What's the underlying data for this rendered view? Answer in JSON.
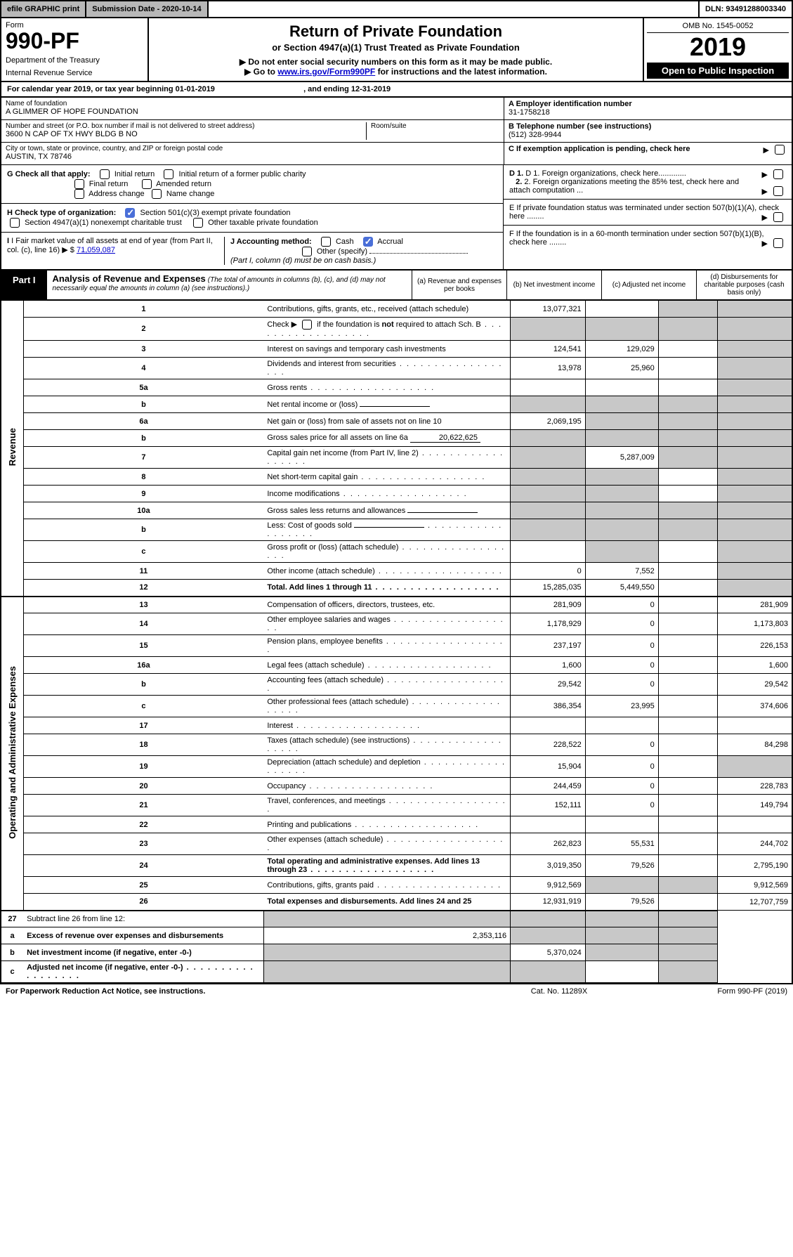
{
  "topbar": {
    "efile": "efile GRAPHIC print",
    "submission": "Submission Date - 2020-10-14",
    "dln": "DLN: 93491288003340"
  },
  "header": {
    "form_word": "Form",
    "form_no": "990-PF",
    "dept": "Department of the Treasury",
    "irs": "Internal Revenue Service",
    "title": "Return of Private Foundation",
    "subtitle": "or Section 4947(a)(1) Trust Treated as Private Foundation",
    "note1": "▶ Do not enter social security numbers on this form as it may be made public.",
    "note2_pre": "▶ Go to ",
    "note2_link": "www.irs.gov/Form990PF",
    "note2_post": " for instructions and the latest information.",
    "omb": "OMB No. 1545-0052",
    "year": "2019",
    "open": "Open to Public Inspection"
  },
  "calyear": {
    "text_pre": "For calendar year 2019, or tax year beginning ",
    "begin": "01-01-2019",
    "mid": ", and ending ",
    "end": "12-31-2019"
  },
  "entity": {
    "name_lbl": "Name of foundation",
    "name": "A GLIMMER OF HOPE FOUNDATION",
    "addr_lbl": "Number and street (or P.O. box number if mail is not delivered to street address)",
    "addr": "3600 N CAP OF TX HWY BLDG B NO",
    "room_lbl": "Room/suite",
    "room": "",
    "city_lbl": "City or town, state or province, country, and ZIP or foreign postal code",
    "city": "AUSTIN, TX  78746",
    "a_lbl": "A Employer identification number",
    "a_val": "31-1758218",
    "b_lbl": "B Telephone number (see instructions)",
    "b_val": "(512) 328-9944",
    "c_lbl": "C If exemption application is pending, check here"
  },
  "checks": {
    "g_lbl": "G Check all that apply:",
    "g1": "Initial return",
    "g2": "Initial return of a former public charity",
    "g3": "Final return",
    "g4": "Amended return",
    "g5": "Address change",
    "g6": "Name change",
    "h_lbl": "H Check type of organization:",
    "h1": "Section 501(c)(3) exempt private foundation",
    "h2": "Section 4947(a)(1) nonexempt charitable trust",
    "h3": "Other taxable private foundation",
    "i_lbl": "I Fair market value of all assets at end of year (from Part II, col. (c), line 16) ▶ $",
    "i_val": "71,059,087",
    "j_lbl": "J Accounting method:",
    "j1": "Cash",
    "j2": "Accrual",
    "j3": "Other (specify)",
    "j_note": "(Part I, column (d) must be on cash basis.)",
    "d1": "D 1. Foreign organizations, check here.............",
    "d2": "2. Foreign organizations meeting the 85% test, check here and attach computation ...",
    "e": "E  If private foundation status was terminated under section 507(b)(1)(A), check here ........",
    "f": "F  If the foundation is in a 60-month termination under section 507(b)(1)(B), check here ........"
  },
  "part1": {
    "label": "Part I",
    "title": "Analysis of Revenue and Expenses",
    "subtitle": "(The total of amounts in columns (b), (c), and (d) may not necessarily equal the amounts in column (a) (see instructions).)",
    "cols": {
      "a": "(a)   Revenue and expenses per books",
      "b": "(b)  Net investment income",
      "c": "(c)  Adjusted net income",
      "d": "(d)  Disbursements for charitable purposes (cash basis only)"
    }
  },
  "side": {
    "revenue": "Revenue",
    "expenses": "Operating and Administrative Expenses"
  },
  "rows": [
    {
      "n": "1",
      "d": "Contributions, gifts, grants, etc., received (attach schedule)",
      "a": "13,077,321",
      "b": "",
      "c": "shade",
      "dcol": "shade"
    },
    {
      "n": "2",
      "d": "Check ▶ ☐ if the foundation is not required to attach Sch. B",
      "dots": true,
      "a": "shade",
      "b": "shade",
      "c": "shade",
      "dcol": "shade"
    },
    {
      "n": "3",
      "d": "Interest on savings and temporary cash investments",
      "a": "124,541",
      "b": "129,029",
      "c": "",
      "dcol": "shade"
    },
    {
      "n": "4",
      "d": "Dividends and interest from securities",
      "dots": true,
      "a": "13,978",
      "b": "25,960",
      "c": "",
      "dcol": "shade"
    },
    {
      "n": "5a",
      "d": "Gross rents",
      "dots": true,
      "a": "",
      "b": "",
      "c": "",
      "dcol": "shade"
    },
    {
      "n": "b",
      "d": "Net rental income or (loss)",
      "inline": "",
      "a": "shade",
      "b": "shade",
      "c": "shade",
      "dcol": "shade"
    },
    {
      "n": "6a",
      "d": "Net gain or (loss) from sale of assets not on line 10",
      "a": "2,069,195",
      "b": "shade",
      "c": "shade",
      "dcol": "shade"
    },
    {
      "n": "b",
      "d": "Gross sales price for all assets on line 6a",
      "inline": "20,622,625",
      "a": "shade",
      "b": "shade",
      "c": "shade",
      "dcol": "shade"
    },
    {
      "n": "7",
      "d": "Capital gain net income (from Part IV, line 2)",
      "dots": true,
      "a": "shade",
      "b": "5,287,009",
      "c": "shade",
      "dcol": "shade"
    },
    {
      "n": "8",
      "d": "Net short-term capital gain",
      "dots": true,
      "a": "shade",
      "b": "shade",
      "c": "",
      "dcol": "shade"
    },
    {
      "n": "9",
      "d": "Income modifications",
      "dots": true,
      "a": "shade",
      "b": "shade",
      "c": "",
      "dcol": "shade"
    },
    {
      "n": "10a",
      "d": "Gross sales less returns and allowances",
      "inline": "",
      "a": "shade",
      "b": "shade",
      "c": "shade",
      "dcol": "shade"
    },
    {
      "n": "b",
      "d": "Less: Cost of goods sold",
      "dots": true,
      "inline": "",
      "a": "shade",
      "b": "shade",
      "c": "shade",
      "dcol": "shade"
    },
    {
      "n": "c",
      "d": "Gross profit or (loss) (attach schedule)",
      "dots": true,
      "a": "",
      "b": "shade",
      "c": "",
      "dcol": "shade"
    },
    {
      "n": "11",
      "d": "Other income (attach schedule)",
      "dots": true,
      "a": "0",
      "b": "7,552",
      "c": "",
      "dcol": "shade"
    },
    {
      "n": "12",
      "d": "Total. Add lines 1 through 11",
      "dots": true,
      "bold": true,
      "a": "15,285,035",
      "b": "5,449,550",
      "c": "",
      "dcol": "shade"
    }
  ],
  "exprows": [
    {
      "n": "13",
      "d": "Compensation of officers, directors, trustees, etc.",
      "a": "281,909",
      "b": "0",
      "c": "",
      "dcol": "281,909"
    },
    {
      "n": "14",
      "d": "Other employee salaries and wages",
      "dots": true,
      "a": "1,178,929",
      "b": "0",
      "c": "",
      "dcol": "1,173,803"
    },
    {
      "n": "15",
      "d": "Pension plans, employee benefits",
      "dots": true,
      "a": "237,197",
      "b": "0",
      "c": "",
      "dcol": "226,153"
    },
    {
      "n": "16a",
      "d": "Legal fees (attach schedule)",
      "dots": true,
      "a": "1,600",
      "b": "0",
      "c": "",
      "dcol": "1,600"
    },
    {
      "n": "b",
      "d": "Accounting fees (attach schedule)",
      "dots": true,
      "a": "29,542",
      "b": "0",
      "c": "",
      "dcol": "29,542"
    },
    {
      "n": "c",
      "d": "Other professional fees (attach schedule)",
      "dots": true,
      "a": "386,354",
      "b": "23,995",
      "c": "",
      "dcol": "374,606"
    },
    {
      "n": "17",
      "d": "Interest",
      "dots": true,
      "a": "",
      "b": "",
      "c": "",
      "dcol": ""
    },
    {
      "n": "18",
      "d": "Taxes (attach schedule) (see instructions)",
      "dots": true,
      "a": "228,522",
      "b": "0",
      "c": "",
      "dcol": "84,298"
    },
    {
      "n": "19",
      "d": "Depreciation (attach schedule) and depletion",
      "dots": true,
      "a": "15,904",
      "b": "0",
      "c": "",
      "dcol": "shade"
    },
    {
      "n": "20",
      "d": "Occupancy",
      "dots": true,
      "a": "244,459",
      "b": "0",
      "c": "",
      "dcol": "228,783"
    },
    {
      "n": "21",
      "d": "Travel, conferences, and meetings",
      "dots": true,
      "a": "152,111",
      "b": "0",
      "c": "",
      "dcol": "149,794"
    },
    {
      "n": "22",
      "d": "Printing and publications",
      "dots": true,
      "a": "",
      "b": "",
      "c": "",
      "dcol": ""
    },
    {
      "n": "23",
      "d": "Other expenses (attach schedule)",
      "dots": true,
      "a": "262,823",
      "b": "55,531",
      "c": "",
      "dcol": "244,702"
    },
    {
      "n": "24",
      "d": "Total operating and administrative expenses. Add lines 13 through 23",
      "dots": true,
      "bold": true,
      "a": "3,019,350",
      "b": "79,526",
      "c": "",
      "dcol": "2,795,190"
    },
    {
      "n": "25",
      "d": "Contributions, gifts, grants paid",
      "dots": true,
      "a": "9,912,569",
      "b": "shade",
      "c": "shade",
      "dcol": "9,912,569"
    },
    {
      "n": "26",
      "d": "Total expenses and disbursements. Add lines 24 and 25",
      "bold": true,
      "a": "12,931,919",
      "b": "79,526",
      "c": "",
      "dcol": "12,707,759"
    }
  ],
  "rows27": [
    {
      "n": "27",
      "d": "Subtract line 26 from line 12:",
      "a": "shade",
      "b": "shade",
      "c": "shade",
      "dcol": "shade"
    },
    {
      "n": "a",
      "d": "Excess of revenue over expenses and disbursements",
      "bold": true,
      "a": "2,353,116",
      "b": "shade",
      "c": "shade",
      "dcol": "shade"
    },
    {
      "n": "b",
      "d": "Net investment income (if negative, enter -0-)",
      "bold": true,
      "a": "shade",
      "b": "5,370,024",
      "c": "shade",
      "dcol": "shade"
    },
    {
      "n": "c",
      "d": "Adjusted net income (if negative, enter -0-)",
      "dots": true,
      "bold": true,
      "a": "shade",
      "b": "shade",
      "c": "",
      "dcol": "shade"
    }
  ],
  "footer": {
    "left": "For Paperwork Reduction Act Notice, see instructions.",
    "center": "Cat. No. 11289X",
    "right": "Form 990-PF (2019)"
  }
}
